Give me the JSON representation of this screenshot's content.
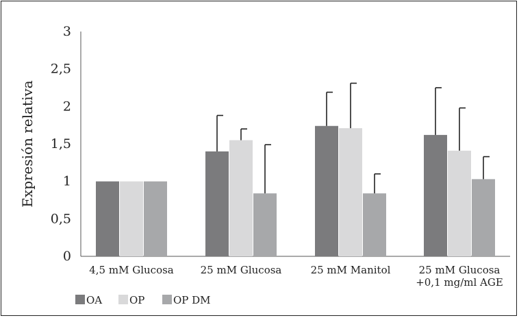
{
  "chart_data": {
    "type": "bar",
    "title": "",
    "xlabel": "",
    "ylabel": "Expresión relativa",
    "ylim": [
      0,
      3
    ],
    "yticks": [
      "0",
      "0,5",
      "1",
      "1,5",
      "2",
      "2,5",
      "3"
    ],
    "categories": [
      [
        "4,5 mM Glucosa"
      ],
      [
        "25 mM Glucosa"
      ],
      [
        "25 mM Manitol"
      ],
      [
        "25 mM Glucosa",
        "+0,1 mg/ml AGE"
      ]
    ],
    "series": [
      {
        "name": "OA",
        "color": "#7b7b7d",
        "values": [
          1.0,
          1.4,
          1.74,
          1.62
        ],
        "error_plus": [
          0,
          0.48,
          0.45,
          0.63
        ]
      },
      {
        "name": "OP",
        "color": "#d9d9da",
        "values": [
          1.0,
          1.55,
          1.71,
          1.41
        ],
        "error_plus": [
          0,
          0.15,
          0.6,
          0.57
        ]
      },
      {
        "name": "OP DM",
        "color": "#a7a8aa",
        "values": [
          1.0,
          0.84,
          0.84,
          1.03
        ],
        "error_plus": [
          0,
          0.65,
          0.26,
          0.3
        ]
      }
    ],
    "grid": false,
    "legend_position": "bottom-left"
  }
}
